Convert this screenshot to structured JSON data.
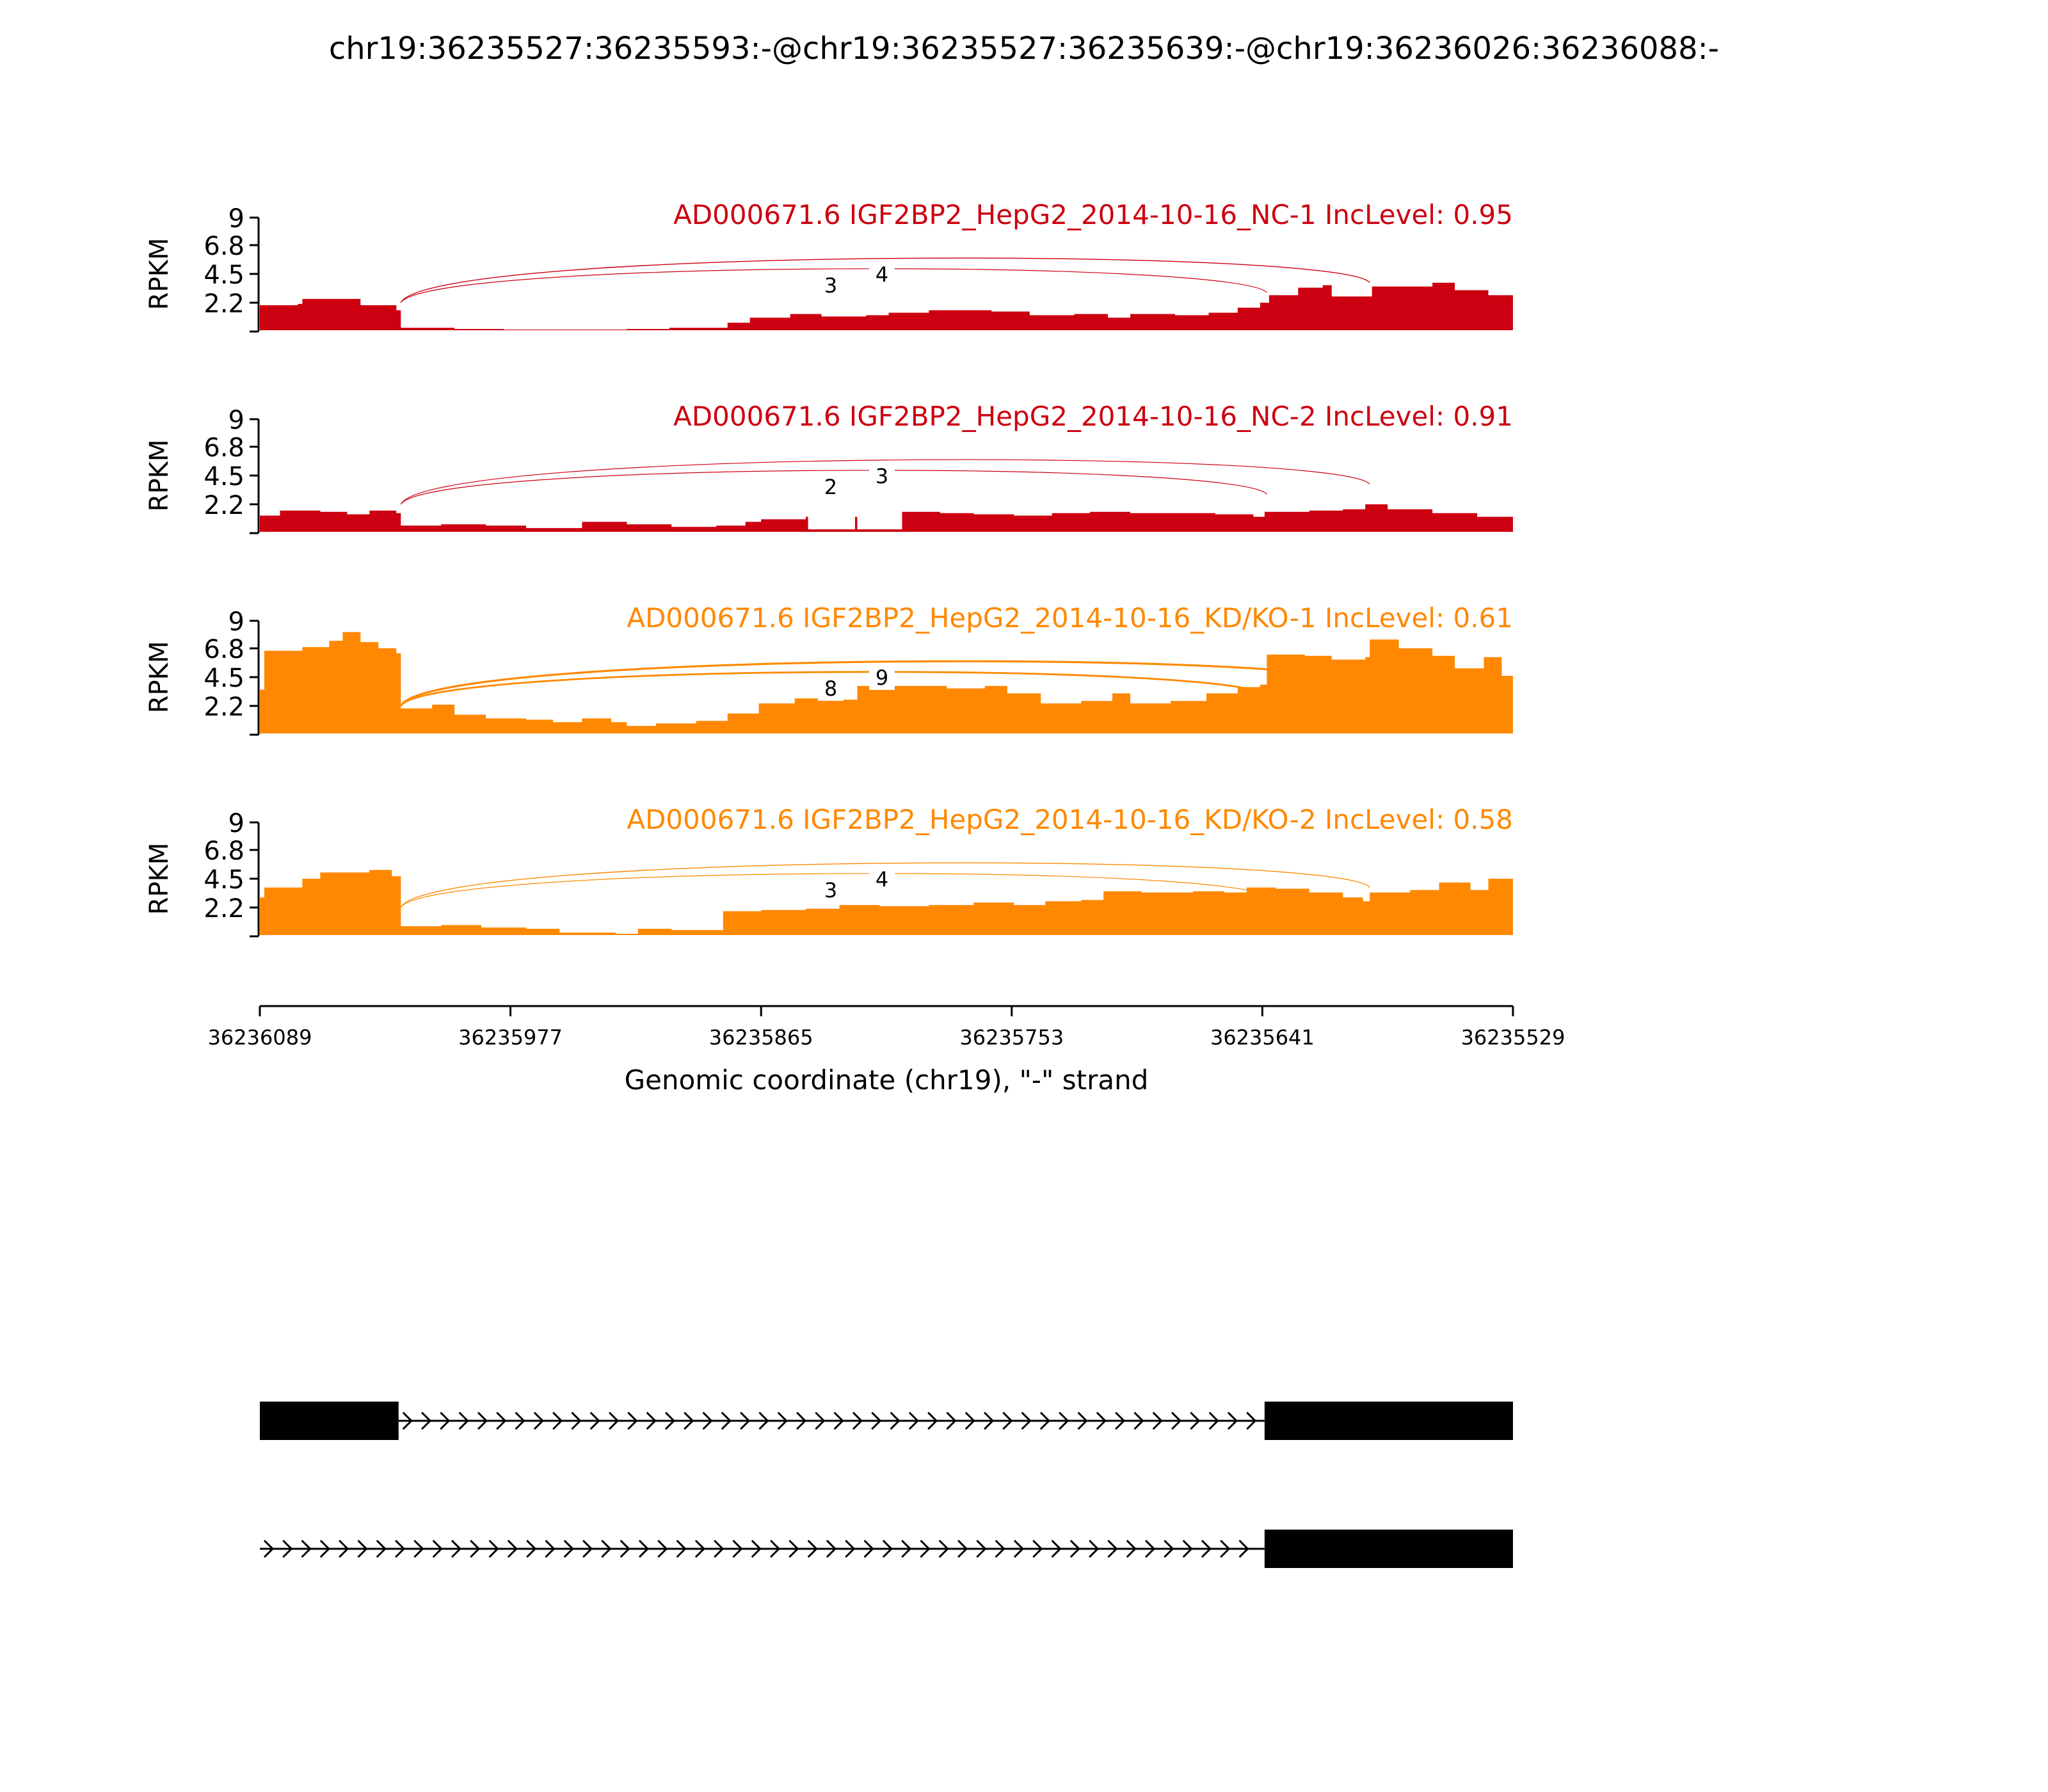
{
  "figure": {
    "title": "chr19:36235527:36235593:-@chr19:36235527:36235639:-@chr19:36236026:36236088:-"
  },
  "chart_data": {
    "type": "area",
    "title": "chr19:36235527:36235593:-@chr19:36235527:36235639:-@chr19:36236026:36236088:-",
    "xlabel": "Genomic coordinate (chr19), \"-\" strand",
    "ylabel": "RPKM",
    "xlim": [
      36236089,
      36235529
    ],
    "x_ticks": [
      "36236089",
      "36235977",
      "36235865",
      "36235753",
      "36235641",
      "36235529"
    ],
    "y_ticks": [
      "9",
      "6.8",
      "4.5",
      "2.2"
    ],
    "ylim": [
      0,
      9
    ],
    "colors": {
      "NC": "#cc0010",
      "KD": "#ff8800",
      "junction_labels": "#000000",
      "exons": "#000000"
    },
    "tracks": [
      {
        "name": "AD000671.6 IGF2BP2_HepG2_2014-10-16_NC-1 IncLevel: 0.95",
        "group": "NC",
        "coverage": [
          [
            36236089,
            2.0
          ],
          [
            36236072,
            2.1
          ],
          [
            36236070,
            2.5
          ],
          [
            36236052,
            2.5
          ],
          [
            36236044,
            2.0
          ],
          [
            36236028,
            1.6
          ],
          [
            36236026,
            0.2
          ],
          [
            36236002,
            0.1
          ],
          [
            36235980,
            0.05
          ],
          [
            36235960,
            0.05
          ],
          [
            36235940,
            0.05
          ],
          [
            36235925,
            0.1
          ],
          [
            36235906,
            0.2
          ],
          [
            36235880,
            0.6
          ],
          [
            36235870,
            1.0
          ],
          [
            36235852,
            1.3
          ],
          [
            36235838,
            1.1
          ],
          [
            36235818,
            1.2
          ],
          [
            36235808,
            1.4
          ],
          [
            36235790,
            1.6
          ],
          [
            36235770,
            1.6
          ],
          [
            36235762,
            1.5
          ],
          [
            36235745,
            1.2
          ],
          [
            36235725,
            1.3
          ],
          [
            36235710,
            1.0
          ],
          [
            36235700,
            1.3
          ],
          [
            36235680,
            1.2
          ],
          [
            36235665,
            1.4
          ],
          [
            36235652,
            1.8
          ],
          [
            36235642,
            2.2
          ],
          [
            36235638,
            2.8
          ],
          [
            36235625,
            3.4
          ],
          [
            36235614,
            3.6
          ],
          [
            36235610,
            2.7
          ],
          [
            36235594,
            2.7
          ],
          [
            36235592,
            3.5
          ],
          [
            36235575,
            3.5
          ],
          [
            36235565,
            3.8
          ],
          [
            36235555,
            3.2
          ],
          [
            36235540,
            2.8
          ],
          [
            36235529,
            1.7
          ]
        ],
        "junctions": [
          {
            "label": "3",
            "from": 36236026,
            "to": 36235639,
            "count": 3
          },
          {
            "label": "4",
            "from": 36236026,
            "to": 36235593,
            "count": 4
          }
        ]
      },
      {
        "name": "AD000671.6 IGF2BP2_HepG2_2014-10-16_NC-2 IncLevel: 0.91",
        "group": "NC",
        "coverage": [
          [
            36236089,
            1.3
          ],
          [
            36236080,
            1.7
          ],
          [
            36236062,
            1.6
          ],
          [
            36236050,
            1.4
          ],
          [
            36236040,
            1.7
          ],
          [
            36236028,
            1.5
          ],
          [
            36236026,
            0.5
          ],
          [
            36236008,
            0.6
          ],
          [
            36235988,
            0.5
          ],
          [
            36235970,
            0.3
          ],
          [
            36235955,
            0.3
          ],
          [
            36235945,
            0.8
          ],
          [
            36235925,
            0.6
          ],
          [
            36235905,
            0.4
          ],
          [
            36235885,
            0.5
          ],
          [
            36235872,
            0.8
          ],
          [
            36235865,
            1.0
          ],
          [
            36235845,
            1.2
          ],
          [
            36235844,
            0.2
          ],
          [
            36235824,
            0.2
          ],
          [
            36235823,
            1.2
          ],
          [
            36235822,
            0.2
          ],
          [
            36235803,
            0.2
          ],
          [
            36235802,
            1.6
          ],
          [
            36235785,
            1.5
          ],
          [
            36235770,
            1.4
          ],
          [
            36235752,
            1.3
          ],
          [
            36235735,
            1.5
          ],
          [
            36235718,
            1.6
          ],
          [
            36235700,
            1.5
          ],
          [
            36235680,
            1.5
          ],
          [
            36235662,
            1.4
          ],
          [
            36235645,
            1.2
          ],
          [
            36235640,
            1.6
          ],
          [
            36235620,
            1.7
          ],
          [
            36235605,
            1.8
          ],
          [
            36235595,
            2.2
          ],
          [
            36235585,
            1.8
          ],
          [
            36235565,
            1.5
          ],
          [
            36235545,
            1.2
          ],
          [
            36235529,
            1.1
          ]
        ],
        "junctions": [
          {
            "label": "2",
            "from": 36236026,
            "to": 36235639,
            "count": 2
          },
          {
            "label": "3",
            "from": 36236026,
            "to": 36235593,
            "count": 3
          }
        ]
      },
      {
        "name": "AD000671.6 IGF2BP2_HepG2_2014-10-16_KD/KO-1 IncLevel: 0.61",
        "group": "KD",
        "coverage": [
          [
            36236089,
            3.5
          ],
          [
            36236087,
            6.6
          ],
          [
            36236070,
            6.9
          ],
          [
            36236058,
            7.4
          ],
          [
            36236052,
            8.1
          ],
          [
            36236044,
            7.3
          ],
          [
            36236036,
            6.8
          ],
          [
            36236028,
            6.4
          ],
          [
            36236026,
            2.0
          ],
          [
            36236012,
            2.3
          ],
          [
            36236002,
            1.5
          ],
          [
            36235988,
            1.2
          ],
          [
            36235970,
            1.1
          ],
          [
            36235958,
            0.9
          ],
          [
            36235945,
            1.2
          ],
          [
            36235932,
            0.9
          ],
          [
            36235925,
            0.6
          ],
          [
            36235912,
            0.8
          ],
          [
            36235894,
            1.0
          ],
          [
            36235880,
            1.6
          ],
          [
            36235866,
            2.4
          ],
          [
            36235850,
            2.8
          ],
          [
            36235836,
            2.7
          ],
          [
            36235822,
            3.8
          ],
          [
            36235800,
            3.8
          ],
          [
            36235782,
            3.6
          ],
          [
            36235765,
            3.8
          ],
          [
            36235755,
            3.2
          ],
          [
            36235740,
            2.4
          ],
          [
            36235722,
            2.6
          ],
          [
            36235708,
            3.2
          ],
          [
            36235700,
            2.4
          ],
          [
            36235682,
            2.6
          ],
          [
            36235666,
            3.2
          ],
          [
            36235652,
            3.7
          ],
          [
            36235642,
            3.9
          ],
          [
            36235639,
            6.3
          ],
          [
            36235622,
            6.2
          ],
          [
            36235610,
            5.9
          ],
          [
            36235595,
            6.1
          ],
          [
            36235593,
            7.5
          ],
          [
            36235580,
            6.8
          ],
          [
            36235565,
            6.2
          ],
          [
            36235555,
            5.2
          ],
          [
            36235542,
            6.1
          ],
          [
            36235534,
            4.6
          ],
          [
            36235529,
            4.1
          ]
        ],
        "junctions": [
          {
            "label": "8",
            "from": 36236026,
            "to": 36235639,
            "count": 8
          },
          {
            "label": "9",
            "from": 36236026,
            "to": 36235593,
            "count": 9
          }
        ]
      },
      {
        "name": "AD000671.6 IGF2BP2_HepG2_2014-10-16_KD/KO-2 IncLevel: 0.58",
        "group": "KD",
        "coverage": [
          [
            36236089,
            3.0
          ],
          [
            36236087,
            3.8
          ],
          [
            36236070,
            4.5
          ],
          [
            36236062,
            5.0
          ],
          [
            36236040,
            5.2
          ],
          [
            36236030,
            4.7
          ],
          [
            36236026,
            0.7
          ],
          [
            36236008,
            0.8
          ],
          [
            36235990,
            0.6
          ],
          [
            36235970,
            0.5
          ],
          [
            36235955,
            0.2
          ],
          [
            36235930,
            0.1
          ],
          [
            36235920,
            0.5
          ],
          [
            36235905,
            0.4
          ],
          [
            36235882,
            1.9
          ],
          [
            36235865,
            2.0
          ],
          [
            36235845,
            2.1
          ],
          [
            36235830,
            2.4
          ],
          [
            36235812,
            2.3
          ],
          [
            36235790,
            2.4
          ],
          [
            36235770,
            2.6
          ],
          [
            36235752,
            2.4
          ],
          [
            36235738,
            2.7
          ],
          [
            36235722,
            2.8
          ],
          [
            36235712,
            3.5
          ],
          [
            36235695,
            3.4
          ],
          [
            36235672,
            3.5
          ],
          [
            36235658,
            3.4
          ],
          [
            36235648,
            3.8
          ],
          [
            36235635,
            3.7
          ],
          [
            36235620,
            3.4
          ],
          [
            36235605,
            3.0
          ],
          [
            36235596,
            2.7
          ],
          [
            36235593,
            3.4
          ],
          [
            36235575,
            3.6
          ],
          [
            36235562,
            4.2
          ],
          [
            36235548,
            3.6
          ],
          [
            36235540,
            4.5
          ],
          [
            36235529,
            4.3
          ]
        ],
        "junctions": [
          {
            "label": "3",
            "from": 36236026,
            "to": 36235639,
            "count": 3
          },
          {
            "label": "4",
            "from": 36236026,
            "to": 36235593,
            "count": 4
          }
        ]
      }
    ],
    "isoforms": [
      {
        "exons": [
          [
            36236089,
            36236027
          ],
          [
            36235640,
            36235529
          ]
        ]
      },
      {
        "exons": [
          [
            36235640,
            36235529
          ]
        ]
      }
    ]
  }
}
